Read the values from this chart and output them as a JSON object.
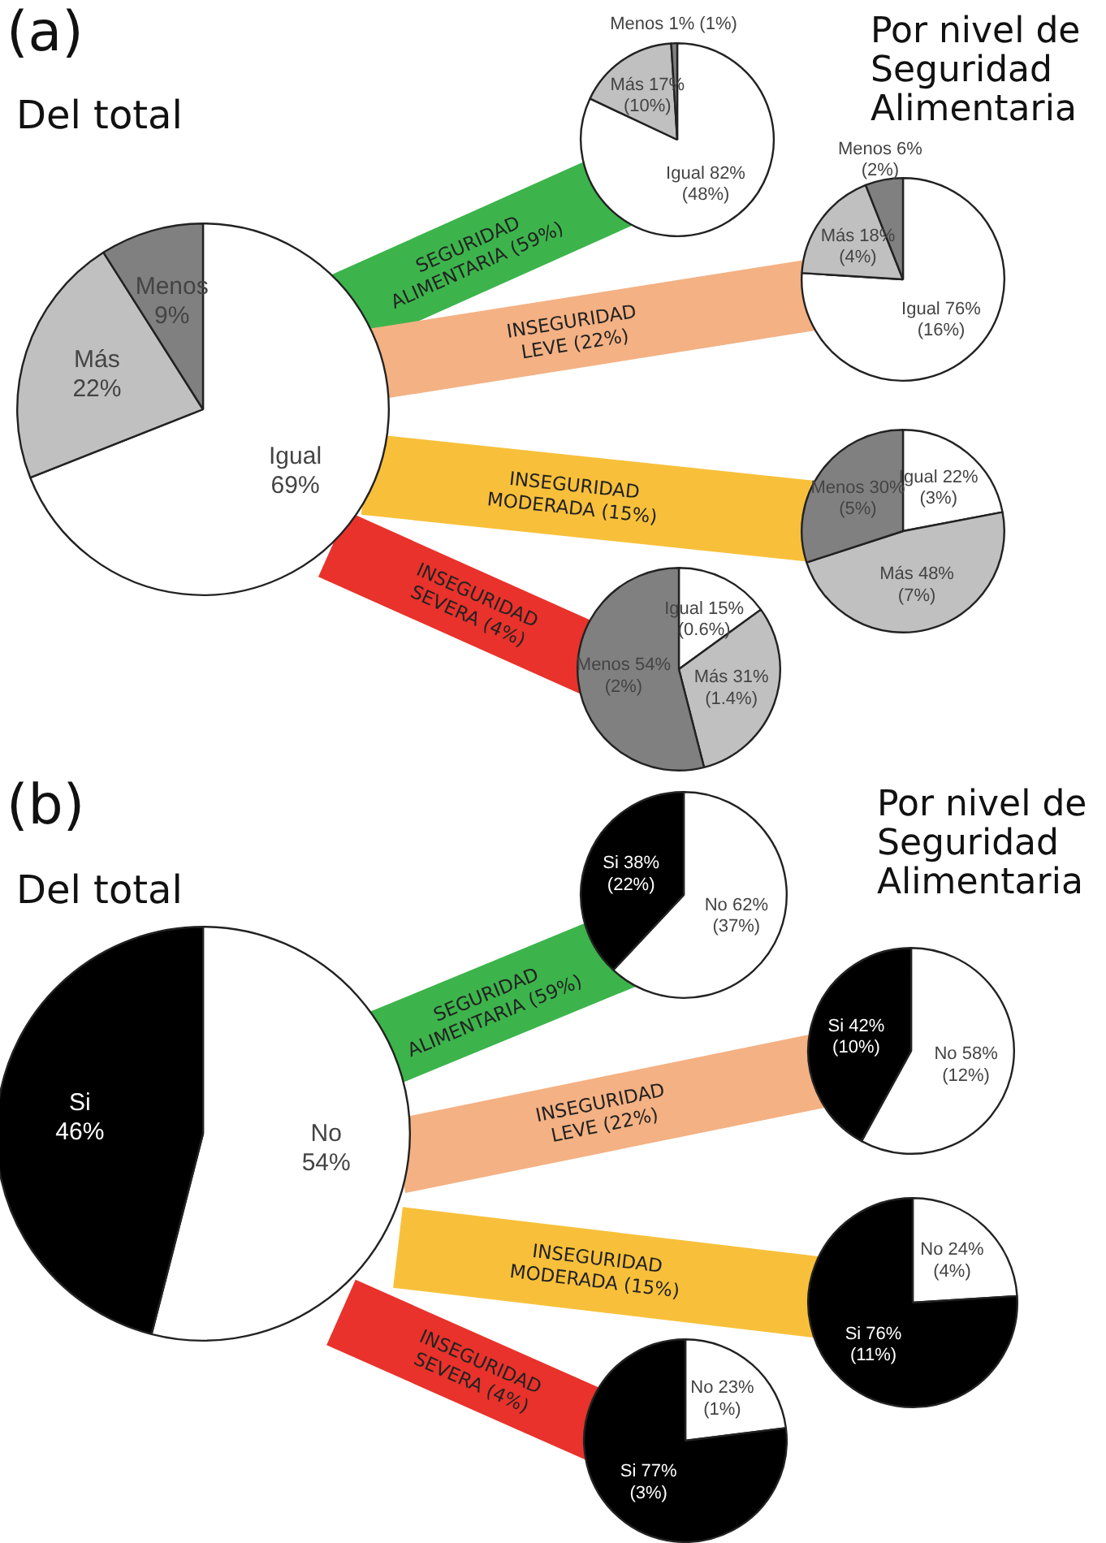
{
  "chart_data": [
    {
      "type": "pie",
      "title": "Del total",
      "annotations": [
        "(a)"
      ],
      "categories": [
        "Igual",
        "Más",
        "Menos"
      ],
      "values": [
        69,
        22,
        9
      ],
      "colors": [
        "#ffffff",
        "#c0c0c0",
        "#808080"
      ],
      "value_labels": [
        "69%",
        "22%",
        "9%"
      ]
    },
    {
      "type": "pie",
      "title": "Por nivel de Seguridad Alimentaria",
      "annotations": [
        "SEGURIDAD\nALIMENTARIA (59%)"
      ],
      "categories": [
        "Igual",
        "Más",
        "Menos"
      ],
      "values": [
        82,
        17,
        1
      ],
      "colors": [
        "#ffffff",
        "#c0c0c0",
        "#808080"
      ],
      "value_labels": [
        "82%\n(48%)",
        "17%\n(10%)",
        "1% (1%)"
      ]
    },
    {
      "type": "pie",
      "annotations": [
        "INSEGURIDAD\nLEVE (22%)"
      ],
      "categories": [
        "Igual",
        "Más",
        "Menos"
      ],
      "values": [
        76,
        18,
        6
      ],
      "colors": [
        "#ffffff",
        "#c0c0c0",
        "#808080"
      ],
      "value_labels": [
        "76%\n(16%)",
        "18%\n(4%)",
        "6%\n(2%)"
      ]
    },
    {
      "type": "pie",
      "annotations": [
        "INSEGURIDAD\nMODERADA (15%)"
      ],
      "categories": [
        "Igual",
        "Más",
        "Menos"
      ],
      "values": [
        22,
        48,
        30
      ],
      "colors": [
        "#ffffff",
        "#c0c0c0",
        "#808080"
      ],
      "value_labels": [
        "22%\n(3%)",
        "48%\n(7%)",
        "30%\n(5%)"
      ]
    },
    {
      "type": "pie",
      "annotations": [
        "INSEGURIDAD\nSEVERA (4%)"
      ],
      "categories": [
        "Igual",
        "Más",
        "Menos"
      ],
      "values": [
        15,
        31,
        54
      ],
      "colors": [
        "#ffffff",
        "#c0c0c0",
        "#808080"
      ],
      "value_labels": [
        "15%\n(0.6%)",
        "31%\n(1.4%)",
        "54%\n(2%)"
      ]
    },
    {
      "type": "pie",
      "title": "Del total",
      "annotations": [
        "(b)"
      ],
      "categories": [
        "No",
        "Si"
      ],
      "values": [
        54,
        46
      ],
      "colors": [
        "#ffffff",
        "#000000"
      ],
      "value_labels": [
        "54%",
        "46%"
      ]
    },
    {
      "type": "pie",
      "title": "Por nivel de Seguridad Alimentaria",
      "annotations": [
        "SEGURIDAD\nALIMENTARIA (59%)"
      ],
      "categories": [
        "No",
        "Si"
      ],
      "values": [
        62,
        38
      ],
      "colors": [
        "#ffffff",
        "#000000"
      ],
      "value_labels": [
        "62%\n(37%)",
        "38%\n(22%)"
      ]
    },
    {
      "type": "pie",
      "annotations": [
        "INSEGURIDAD\nLEVE (22%)"
      ],
      "categories": [
        "No",
        "Si"
      ],
      "values": [
        58,
        42
      ],
      "colors": [
        "#ffffff",
        "#000000"
      ],
      "value_labels": [
        "58%\n(12%)",
        "42%\n(10%)"
      ]
    },
    {
      "type": "pie",
      "annotations": [
        "INSEGURIDAD\nMODERADA (15%)"
      ],
      "categories": [
        "No",
        "Si"
      ],
      "values": [
        24,
        76
      ],
      "colors": [
        "#ffffff",
        "#000000"
      ],
      "value_labels": [
        "24%\n(4%)",
        "76%\n(11%)"
      ]
    },
    {
      "type": "pie",
      "annotations": [
        "INSEGURIDAD\nSEVERA (4%)"
      ],
      "categories": [
        "No",
        "Si"
      ],
      "values": [
        23,
        77
      ],
      "colors": [
        "#ffffff",
        "#000000"
      ],
      "value_labels": [
        "23%\n(1%)",
        "77%\n(3%)"
      ]
    }
  ]
}
